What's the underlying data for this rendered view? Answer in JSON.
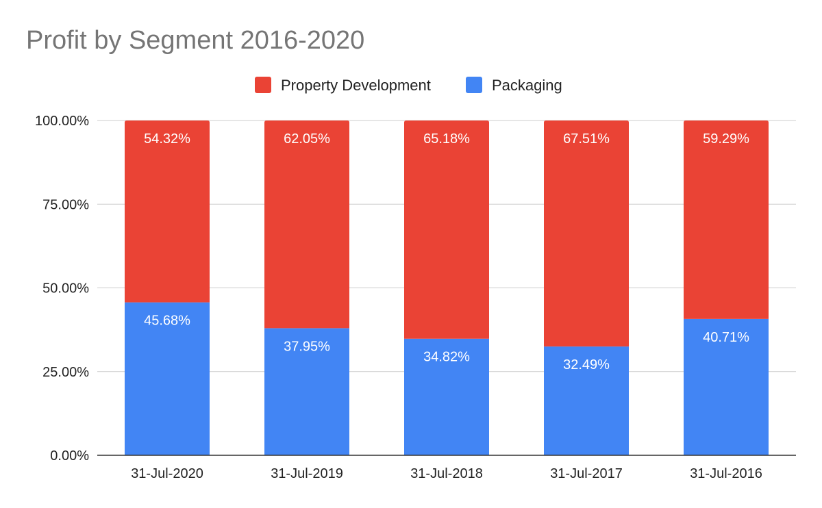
{
  "chart_data": {
    "type": "bar",
    "stacked": "percent",
    "title": "Profit by Segment 2016-2020",
    "xlabel": "",
    "ylabel": "",
    "categories": [
      "31-Jul-2020",
      "31-Jul-2019",
      "31-Jul-2018",
      "31-Jul-2017",
      "31-Jul-2016"
    ],
    "series": [
      {
        "name": "Packaging",
        "color": "#4285f4",
        "values": [
          45.68,
          37.95,
          34.82,
          32.49,
          40.71
        ],
        "labels": [
          "45.68%",
          "37.95%",
          "34.82%",
          "32.49%",
          "40.71%"
        ]
      },
      {
        "name": "Property Development",
        "color": "#ea4335",
        "values": [
          54.32,
          62.05,
          65.18,
          67.51,
          59.29
        ],
        "labels": [
          "54.32%",
          "62.05%",
          "65.18%",
          "67.51%",
          "59.29%"
        ]
      }
    ],
    "legend_order": [
      "Property Development",
      "Packaging"
    ],
    "legend_position": "top",
    "ylim": [
      0,
      100
    ],
    "yticks": [
      0,
      25,
      50,
      75,
      100
    ],
    "ytick_labels": [
      "0.00%",
      "25.00%",
      "50.00%",
      "75.00%",
      "100.00%"
    ],
    "grid": true
  }
}
